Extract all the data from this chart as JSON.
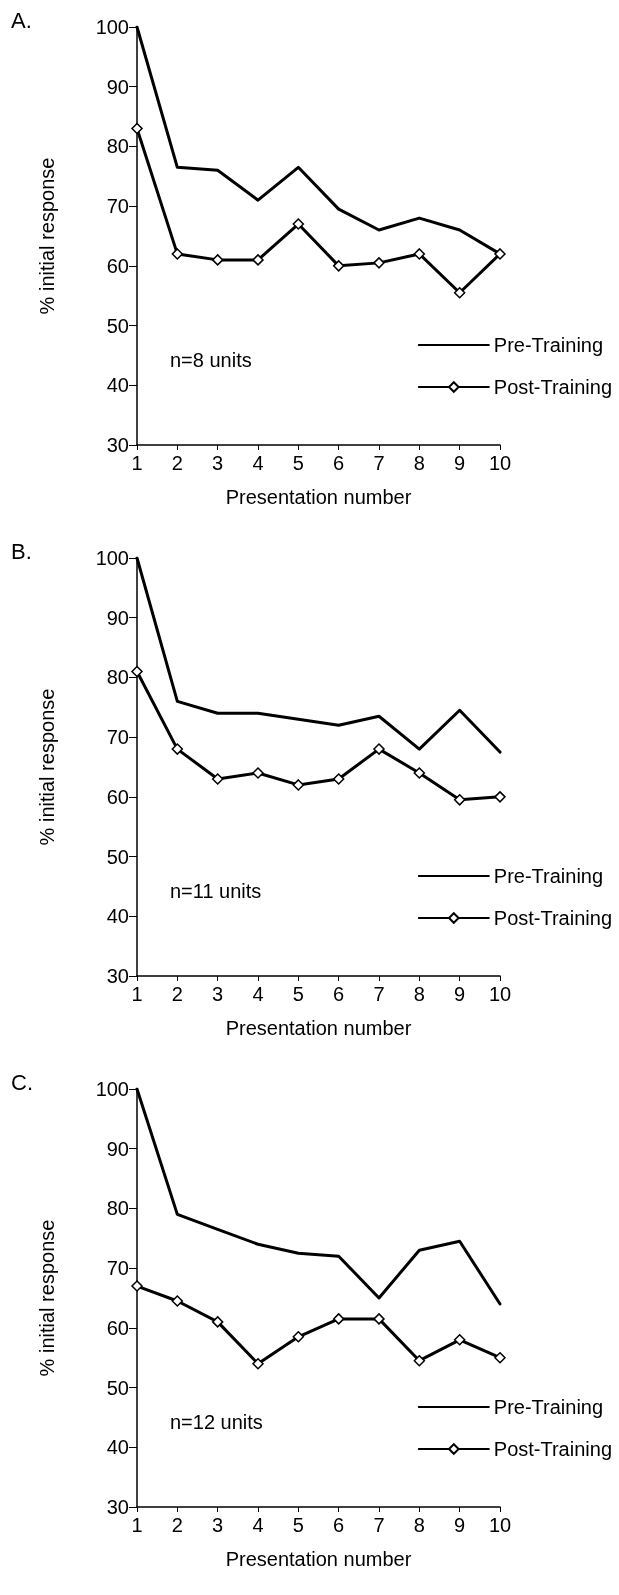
{
  "chart_data": [
    {
      "type": "line",
      "title": "A.",
      "xlabel": "Presentation number",
      "ylabel": "% initial response",
      "annotations": [
        "n=8 units"
      ],
      "x": [
        1,
        2,
        3,
        4,
        5,
        6,
        7,
        8,
        9,
        10
      ],
      "xlim": [
        1,
        10
      ],
      "xticks": [
        1,
        2,
        3,
        4,
        5,
        6,
        7,
        8,
        9,
        10
      ],
      "ylim": [
        30,
        100
      ],
      "yticks": [
        30,
        40,
        50,
        60,
        70,
        80,
        90,
        100
      ],
      "grid": false,
      "legend": "bottom right",
      "line_style": "solid",
      "series": [
        {
          "name": "Pre-Training",
          "color": "#000000",
          "marker": "none",
          "values": [
            100,
            76.5,
            76,
            71,
            76.5,
            69.5,
            66,
            68,
            66,
            62
          ]
        },
        {
          "name": "Post-Training",
          "color": "#000000",
          "marker": "diamond",
          "values": [
            83,
            62,
            61,
            61,
            67,
            60,
            60.5,
            62,
            55.5,
            62
          ]
        }
      ]
    },
    {
      "type": "line",
      "title": "B.",
      "xlabel": "Presentation number",
      "ylabel": "% initial response",
      "annotations": [
        "n=11 units"
      ],
      "x": [
        1,
        2,
        3,
        4,
        5,
        6,
        7,
        8,
        9,
        10
      ],
      "xlim": [
        1,
        10
      ],
      "xticks": [
        1,
        2,
        3,
        4,
        5,
        6,
        7,
        8,
        9,
        10
      ],
      "ylim": [
        30,
        100
      ],
      "yticks": [
        30,
        40,
        50,
        60,
        70,
        80,
        90,
        100
      ],
      "grid": false,
      "legend": "bottom right",
      "line_style": "solid",
      "series": [
        {
          "name": "Pre-Training",
          "color": "#000000",
          "marker": "none",
          "values": [
            100,
            76,
            74,
            74,
            73,
            72,
            73.5,
            68,
            74.5,
            67.5
          ]
        },
        {
          "name": "Post-Training",
          "color": "#000000",
          "marker": "diamond",
          "values": [
            81,
            68,
            63,
            64,
            62,
            63,
            68,
            64,
            59.5,
            60
          ]
        }
      ]
    },
    {
      "type": "line",
      "title": "C.",
      "xlabel": "Presentation number",
      "ylabel": "% initial response",
      "annotations": [
        "n=12 units"
      ],
      "x": [
        1,
        2,
        3,
        4,
        5,
        6,
        7,
        8,
        9,
        10
      ],
      "xlim": [
        1,
        10
      ],
      "xticks": [
        1,
        2,
        3,
        4,
        5,
        6,
        7,
        8,
        9,
        10
      ],
      "ylim": [
        30,
        100
      ],
      "yticks": [
        30,
        40,
        50,
        60,
        70,
        80,
        90,
        100
      ],
      "grid": false,
      "legend": "bottom right",
      "line_style": "solid",
      "series": [
        {
          "name": "Pre-Training",
          "color": "#000000",
          "marker": "none",
          "values": [
            100,
            79,
            76.5,
            74,
            72.5,
            72,
            65,
            73,
            74.5,
            64
          ]
        },
        {
          "name": "Post-Training",
          "color": "#000000",
          "marker": "diamond",
          "values": [
            67,
            64.5,
            61,
            54,
            58.5,
            61.5,
            61.5,
            54.5,
            58,
            55
          ]
        }
      ]
    }
  ]
}
